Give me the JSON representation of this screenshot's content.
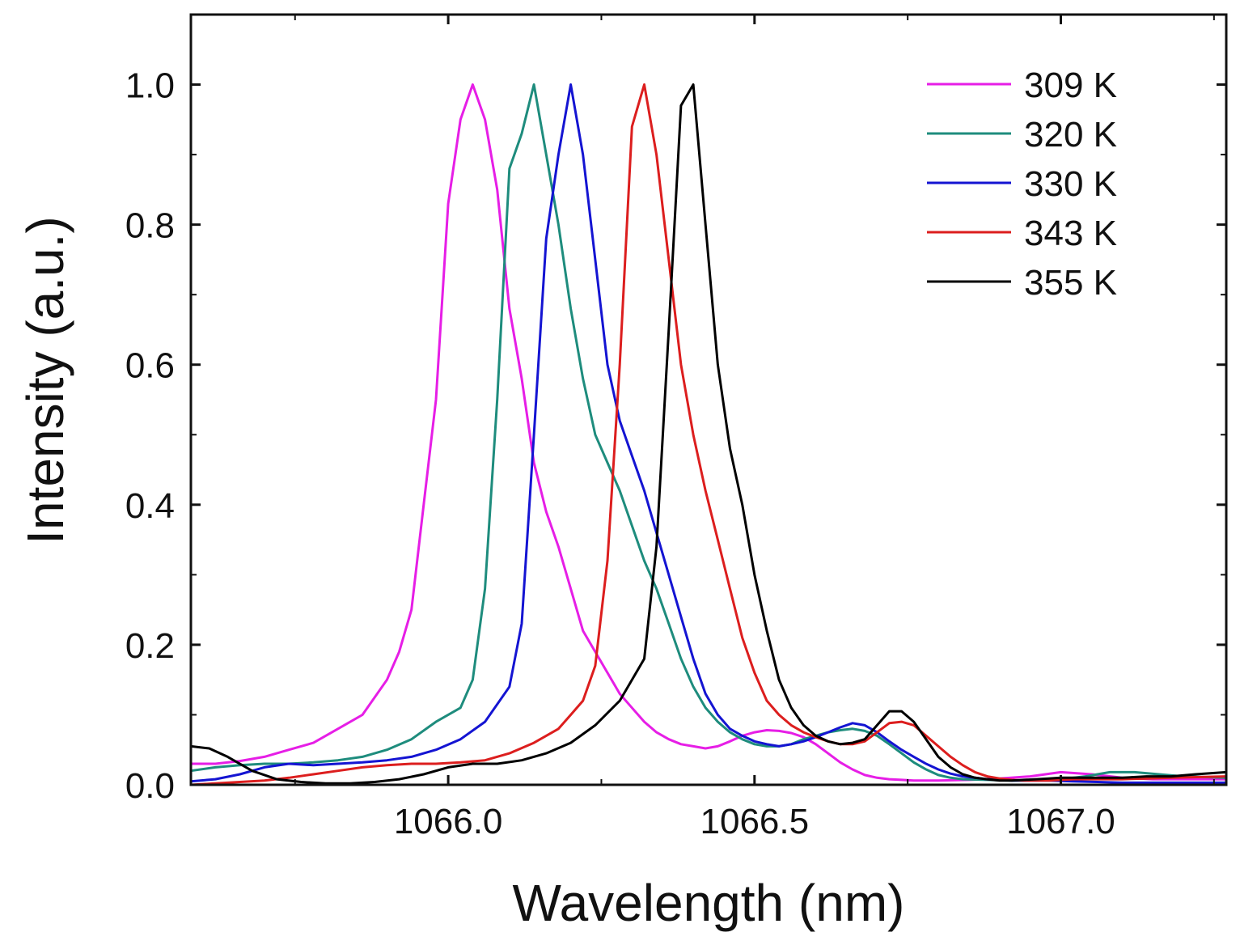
{
  "chart_data": {
    "type": "line",
    "title": "",
    "xlabel": "Wavelength (nm)",
    "ylabel": "Intensity (a.u.)",
    "xlim": [
      1065.58,
      1067.27
    ],
    "ylim": [
      0.0,
      1.1
    ],
    "xticks": [
      1066.0,
      1066.5,
      1067.0
    ],
    "xtick_labels": [
      "1066.0",
      "1066.5",
      "1067.0"
    ],
    "yticks": [
      0.0,
      0.2,
      0.4,
      0.6,
      0.8,
      1.0
    ],
    "ytick_labels": [
      "0.0",
      "0.2",
      "0.4",
      "0.6",
      "0.8",
      "1.0"
    ],
    "grid": false,
    "legend_position": "top-right",
    "series": [
      {
        "name": "309 K",
        "color": "#e61ee6",
        "x": [
          1065.58,
          1065.62,
          1065.66,
          1065.7,
          1065.74,
          1065.78,
          1065.82,
          1065.86,
          1065.9,
          1065.92,
          1065.94,
          1065.96,
          1065.98,
          1066.0,
          1066.02,
          1066.04,
          1066.06,
          1066.08,
          1066.1,
          1066.12,
          1066.14,
          1066.16,
          1066.18,
          1066.2,
          1066.22,
          1066.24,
          1066.26,
          1066.28,
          1066.3,
          1066.32,
          1066.34,
          1066.36,
          1066.38,
          1066.4,
          1066.42,
          1066.44,
          1066.46,
          1066.48,
          1066.5,
          1066.52,
          1066.54,
          1066.56,
          1066.58,
          1066.6,
          1066.62,
          1066.64,
          1066.66,
          1066.68,
          1066.7,
          1066.72,
          1066.74,
          1066.76,
          1066.78,
          1066.8,
          1066.85,
          1066.9,
          1066.95,
          1067.0,
          1067.05,
          1067.1,
          1067.15,
          1067.2,
          1067.27
        ],
        "y": [
          0.03,
          0.03,
          0.034,
          0.04,
          0.05,
          0.06,
          0.08,
          0.1,
          0.15,
          0.19,
          0.25,
          0.4,
          0.55,
          0.83,
          0.95,
          1.0,
          0.95,
          0.85,
          0.68,
          0.58,
          0.46,
          0.39,
          0.34,
          0.28,
          0.22,
          0.19,
          0.16,
          0.13,
          0.11,
          0.09,
          0.075,
          0.065,
          0.058,
          0.055,
          0.052,
          0.055,
          0.062,
          0.07,
          0.075,
          0.078,
          0.077,
          0.074,
          0.068,
          0.058,
          0.045,
          0.032,
          0.022,
          0.014,
          0.01,
          0.008,
          0.007,
          0.006,
          0.006,
          0.006,
          0.007,
          0.009,
          0.012,
          0.018,
          0.015,
          0.01,
          0.008,
          0.008,
          0.008
        ]
      },
      {
        "name": "320 K",
        "color": "#1e8c7d",
        "x": [
          1065.58,
          1065.62,
          1065.66,
          1065.7,
          1065.74,
          1065.78,
          1065.82,
          1065.86,
          1065.9,
          1065.94,
          1065.98,
          1066.02,
          1066.04,
          1066.06,
          1066.08,
          1066.1,
          1066.12,
          1066.14,
          1066.16,
          1066.18,
          1066.2,
          1066.22,
          1066.24,
          1066.26,
          1066.28,
          1066.3,
          1066.32,
          1066.34,
          1066.36,
          1066.38,
          1066.4,
          1066.42,
          1066.44,
          1066.46,
          1066.48,
          1066.5,
          1066.52,
          1066.54,
          1066.56,
          1066.58,
          1066.6,
          1066.62,
          1066.64,
          1066.66,
          1066.68,
          1066.7,
          1066.72,
          1066.74,
          1066.76,
          1066.78,
          1066.8,
          1066.82,
          1066.84,
          1066.88,
          1066.92,
          1066.96,
          1067.0,
          1067.04,
          1067.08,
          1067.12,
          1067.16,
          1067.2,
          1067.27
        ],
        "y": [
          0.02,
          0.025,
          0.028,
          0.03,
          0.03,
          0.032,
          0.035,
          0.04,
          0.05,
          0.065,
          0.09,
          0.11,
          0.15,
          0.28,
          0.55,
          0.88,
          0.93,
          1.0,
          0.9,
          0.8,
          0.68,
          0.58,
          0.5,
          0.46,
          0.42,
          0.37,
          0.32,
          0.28,
          0.23,
          0.18,
          0.14,
          0.11,
          0.09,
          0.075,
          0.065,
          0.058,
          0.055,
          0.055,
          0.058,
          0.065,
          0.07,
          0.075,
          0.078,
          0.08,
          0.077,
          0.07,
          0.058,
          0.045,
          0.032,
          0.022,
          0.014,
          0.01,
          0.008,
          0.007,
          0.006,
          0.006,
          0.008,
          0.012,
          0.018,
          0.018,
          0.015,
          0.012,
          0.01
        ]
      },
      {
        "name": "330 K",
        "color": "#1414d2",
        "x": [
          1065.58,
          1065.62,
          1065.66,
          1065.7,
          1065.74,
          1065.78,
          1065.82,
          1065.86,
          1065.9,
          1065.94,
          1065.98,
          1066.02,
          1066.06,
          1066.1,
          1066.12,
          1066.14,
          1066.16,
          1066.18,
          1066.2,
          1066.22,
          1066.24,
          1066.26,
          1066.28,
          1066.3,
          1066.32,
          1066.34,
          1066.36,
          1066.38,
          1066.4,
          1066.42,
          1066.44,
          1066.46,
          1066.48,
          1066.5,
          1066.52,
          1066.54,
          1066.56,
          1066.58,
          1066.6,
          1066.62,
          1066.64,
          1066.66,
          1066.68,
          1066.7,
          1066.72,
          1066.74,
          1066.76,
          1066.78,
          1066.8,
          1066.82,
          1066.84,
          1066.86,
          1066.88,
          1066.9,
          1066.92,
          1066.94,
          1066.98,
          1067.02,
          1067.06,
          1067.1,
          1067.14,
          1067.18,
          1067.27
        ],
        "y": [
          0.005,
          0.008,
          0.015,
          0.025,
          0.03,
          0.028,
          0.03,
          0.032,
          0.035,
          0.04,
          0.05,
          0.065,
          0.09,
          0.14,
          0.23,
          0.5,
          0.78,
          0.9,
          1.0,
          0.9,
          0.75,
          0.6,
          0.52,
          0.47,
          0.42,
          0.36,
          0.3,
          0.24,
          0.18,
          0.13,
          0.1,
          0.08,
          0.07,
          0.062,
          0.058,
          0.055,
          0.058,
          0.062,
          0.068,
          0.075,
          0.082,
          0.088,
          0.085,
          0.075,
          0.062,
          0.05,
          0.04,
          0.03,
          0.022,
          0.016,
          0.012,
          0.01,
          0.008,
          0.007,
          0.006,
          0.006,
          0.006,
          0.005,
          0.004,
          0.003,
          0.003,
          0.003,
          0.003
        ]
      },
      {
        "name": "343 K",
        "color": "#dc1e1e",
        "x": [
          1065.58,
          1065.62,
          1065.66,
          1065.7,
          1065.74,
          1065.78,
          1065.82,
          1065.86,
          1065.9,
          1065.94,
          1065.98,
          1066.02,
          1066.06,
          1066.1,
          1066.14,
          1066.18,
          1066.2,
          1066.22,
          1066.24,
          1066.26,
          1066.28,
          1066.3,
          1066.32,
          1066.34,
          1066.36,
          1066.38,
          1066.4,
          1066.42,
          1066.44,
          1066.46,
          1066.48,
          1066.5,
          1066.52,
          1066.54,
          1066.56,
          1066.58,
          1066.6,
          1066.62,
          1066.64,
          1066.66,
          1066.68,
          1066.7,
          1066.72,
          1066.74,
          1066.76,
          1066.78,
          1066.8,
          1066.82,
          1066.84,
          1066.86,
          1066.88,
          1066.9,
          1066.92,
          1066.94,
          1066.96,
          1066.98,
          1067.0,
          1067.02,
          1067.06,
          1067.1,
          1067.14,
          1067.18,
          1067.27
        ],
        "y": [
          0.0,
          0.002,
          0.004,
          0.006,
          0.01,
          0.015,
          0.02,
          0.025,
          0.028,
          0.03,
          0.03,
          0.032,
          0.035,
          0.045,
          0.06,
          0.08,
          0.1,
          0.12,
          0.17,
          0.32,
          0.6,
          0.94,
          1.0,
          0.9,
          0.75,
          0.6,
          0.5,
          0.42,
          0.35,
          0.28,
          0.21,
          0.16,
          0.12,
          0.1,
          0.085,
          0.075,
          0.068,
          0.062,
          0.058,
          0.058,
          0.062,
          0.075,
          0.088,
          0.09,
          0.085,
          0.07,
          0.055,
          0.04,
          0.028,
          0.018,
          0.012,
          0.009,
          0.007,
          0.006,
          0.006,
          0.006,
          0.007,
          0.008,
          0.008,
          0.008,
          0.009,
          0.01,
          0.012
        ]
      },
      {
        "name": "355 K",
        "color": "#000000",
        "x": [
          1065.58,
          1065.61,
          1065.64,
          1065.68,
          1065.72,
          1065.76,
          1065.8,
          1065.84,
          1065.88,
          1065.92,
          1065.96,
          1066.0,
          1066.04,
          1066.08,
          1066.12,
          1066.16,
          1066.2,
          1066.24,
          1066.28,
          1066.32,
          1066.34,
          1066.36,
          1066.38,
          1066.4,
          1066.42,
          1066.44,
          1066.46,
          1066.48,
          1066.5,
          1066.52,
          1066.54,
          1066.56,
          1066.58,
          1066.6,
          1066.62,
          1066.64,
          1066.66,
          1066.68,
          1066.7,
          1066.72,
          1066.74,
          1066.76,
          1066.78,
          1066.8,
          1066.82,
          1066.84,
          1066.86,
          1066.88,
          1066.9,
          1066.92,
          1066.94,
          1066.96,
          1066.98,
          1067.0,
          1067.02,
          1067.04,
          1067.06,
          1067.08,
          1067.1,
          1067.14,
          1067.18,
          1067.22,
          1067.27
        ],
        "y": [
          0.055,
          0.052,
          0.04,
          0.02,
          0.008,
          0.004,
          0.002,
          0.002,
          0.004,
          0.008,
          0.015,
          0.025,
          0.03,
          0.03,
          0.035,
          0.045,
          0.06,
          0.085,
          0.12,
          0.18,
          0.34,
          0.65,
          0.97,
          1.0,
          0.8,
          0.6,
          0.48,
          0.4,
          0.3,
          0.22,
          0.15,
          0.11,
          0.085,
          0.07,
          0.062,
          0.058,
          0.06,
          0.065,
          0.085,
          0.105,
          0.105,
          0.09,
          0.065,
          0.04,
          0.025,
          0.015,
          0.01,
          0.008,
          0.006,
          0.006,
          0.007,
          0.008,
          0.009,
          0.01,
          0.01,
          0.01,
          0.01,
          0.01,
          0.01,
          0.012,
          0.012,
          0.015,
          0.018
        ]
      }
    ]
  }
}
